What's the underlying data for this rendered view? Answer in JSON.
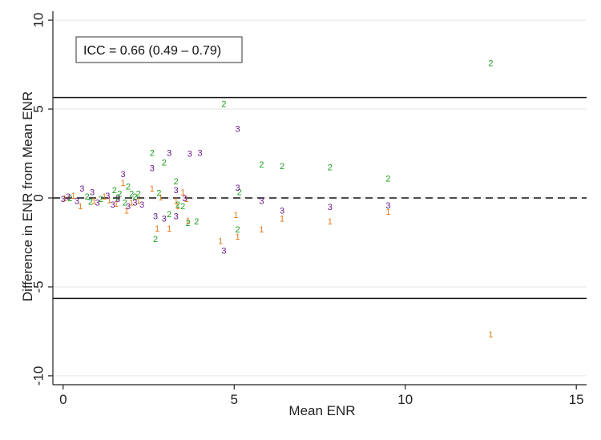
{
  "chart_data": {
    "type": "scatter",
    "xlabel": "Mean ENR",
    "ylabel": "Difference in ENR from Mean ENR",
    "xlim": [
      -0.3,
      15.3
    ],
    "ylim": [
      -10.5,
      10.5
    ],
    "xticks": [
      0,
      5,
      10,
      15
    ],
    "yticks": [
      -10,
      -5,
      0,
      5,
      10
    ],
    "grid": true,
    "annotation": "ICC = 0.66 (0.49 – 0.79)",
    "reference_lines": [
      {
        "y": 5.65,
        "style": "solid"
      },
      {
        "y": 0,
        "style": "dashed"
      },
      {
        "y": -5.65,
        "style": "solid"
      }
    ],
    "colors": {
      "1": "#e07b1a",
      "2": "#1f9e1f",
      "3": "#6a1a8a",
      "axis": "#222222",
      "grid": "#e6e6e6"
    },
    "series": [
      {
        "name": "1",
        "points": [
          [
            0.05,
            -0.05
          ],
          [
            0.3,
            0.1
          ],
          [
            0.5,
            -0.5
          ],
          [
            0.9,
            -0.2
          ],
          [
            1.2,
            0.05
          ],
          [
            1.35,
            -0.15
          ],
          [
            1.55,
            -0.35
          ],
          [
            1.75,
            0.8
          ],
          [
            1.85,
            -0.75
          ],
          [
            2.0,
            -0.3
          ],
          [
            2.2,
            -0.2
          ],
          [
            2.6,
            0.5
          ],
          [
            2.75,
            -1.75
          ],
          [
            2.85,
            0.0
          ],
          [
            3.1,
            -1.75
          ],
          [
            3.3,
            -0.2
          ],
          [
            3.35,
            -0.5
          ],
          [
            3.5,
            0.3
          ],
          [
            3.6,
            -0.1
          ],
          [
            3.65,
            -1.3
          ],
          [
            4.6,
            -2.45
          ],
          [
            5.05,
            -1.0
          ],
          [
            5.1,
            -2.2
          ],
          [
            5.8,
            -1.8
          ],
          [
            6.4,
            -1.2
          ],
          [
            7.8,
            -1.35
          ],
          [
            9.5,
            -0.8
          ],
          [
            12.5,
            -7.7
          ]
        ]
      },
      {
        "name": "2",
        "points": [
          [
            0.2,
            -0.05
          ],
          [
            0.7,
            0.05
          ],
          [
            0.8,
            -0.25
          ],
          [
            1.1,
            -0.1
          ],
          [
            1.5,
            0.4
          ],
          [
            1.6,
            0.0
          ],
          [
            1.65,
            0.2
          ],
          [
            1.8,
            -0.3
          ],
          [
            1.9,
            0.6
          ],
          [
            2.0,
            0.2
          ],
          [
            2.2,
            0.2
          ],
          [
            2.1,
            0.05
          ],
          [
            2.6,
            2.5
          ],
          [
            2.7,
            -2.35
          ],
          [
            2.8,
            0.25
          ],
          [
            2.95,
            1.95
          ],
          [
            3.1,
            -0.95
          ],
          [
            3.3,
            0.9
          ],
          [
            3.35,
            -0.4
          ],
          [
            3.5,
            -0.5
          ],
          [
            3.65,
            -1.45
          ],
          [
            3.9,
            -1.35
          ],
          [
            4.7,
            5.25
          ],
          [
            5.1,
            -1.8
          ],
          [
            5.15,
            0.3
          ],
          [
            5.8,
            1.85
          ],
          [
            6.4,
            1.75
          ],
          [
            7.8,
            1.7
          ],
          [
            9.5,
            1.05
          ],
          [
            12.5,
            7.55
          ]
        ]
      },
      {
        "name": "3",
        "points": [
          [
            0.0,
            -0.1
          ],
          [
            0.15,
            0.05
          ],
          [
            0.4,
            -0.2
          ],
          [
            0.55,
            0.5
          ],
          [
            0.85,
            0.3
          ],
          [
            1.0,
            -0.3
          ],
          [
            1.3,
            0.1
          ],
          [
            1.45,
            -0.4
          ],
          [
            1.6,
            -0.1
          ],
          [
            1.75,
            1.3
          ],
          [
            1.9,
            -0.5
          ],
          [
            2.1,
            -0.3
          ],
          [
            2.3,
            -0.4
          ],
          [
            2.6,
            1.65
          ],
          [
            2.7,
            -1.05
          ],
          [
            2.95,
            -1.2
          ],
          [
            3.1,
            2.5
          ],
          [
            3.3,
            0.4
          ],
          [
            3.3,
            -1.05
          ],
          [
            3.55,
            -0.05
          ],
          [
            3.7,
            2.45
          ],
          [
            4.0,
            2.5
          ],
          [
            4.7,
            -3.0
          ],
          [
            5.1,
            3.85
          ],
          [
            5.1,
            0.55
          ],
          [
            5.8,
            -0.2
          ],
          [
            6.4,
            -0.75
          ],
          [
            7.8,
            -0.55
          ],
          [
            9.5,
            -0.45
          ]
        ]
      }
    ]
  }
}
